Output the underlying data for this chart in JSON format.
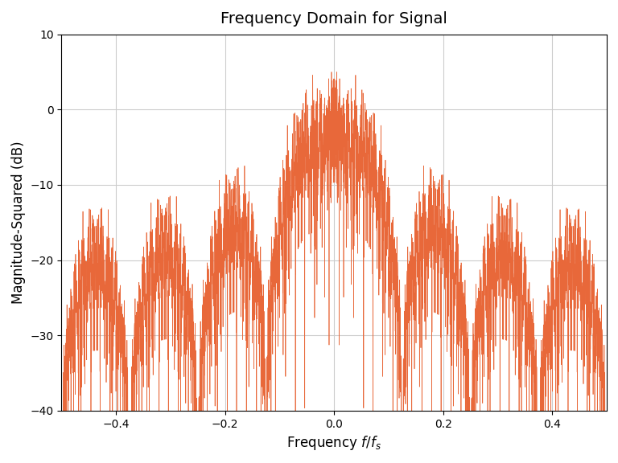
{
  "title": "Frequency Domain for Signal",
  "xlabel": "Frequency $f/f_s$",
  "ylabel": "Magnitude-Squared (dB)",
  "xlim": [
    -0.5,
    0.5
  ],
  "ylim": [
    -40,
    10
  ],
  "line_color": "#E8683A",
  "line_width": 0.5,
  "background_color": "#ffffff",
  "axes_bg_color": "#ffffff",
  "grid_color": "#cccccc",
  "N": 4096,
  "sps": 8,
  "num_symbols": 512,
  "title_fontsize": 14,
  "label_fontsize": 12,
  "tick_fontsize": 10,
  "yticks": [
    -40,
    -30,
    -20,
    -10,
    0,
    10
  ],
  "xticks": [
    -0.4,
    -0.2,
    0.0,
    0.2,
    0.4
  ]
}
